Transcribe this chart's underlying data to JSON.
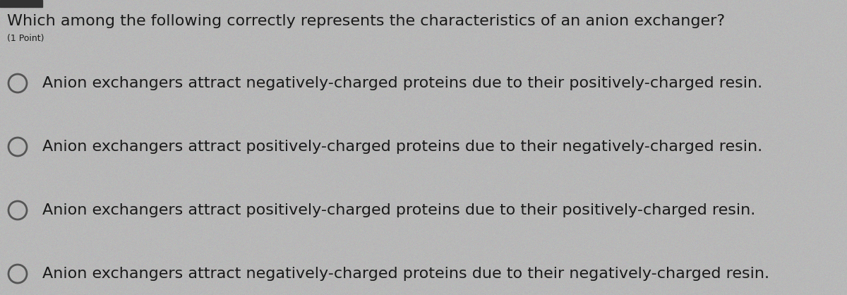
{
  "title": "Which among the following correctly represents the characteristics of an anion exchanger?",
  "subtitle": "(1 Point)",
  "options": [
    "Anion exchangers attract negatively-charged proteins due to their positively-charged resin.",
    "Anion exchangers attract positively-charged proteins due to their negatively-charged resin.",
    "Anion exchangers attract positively-charged proteins due to their positively-charged resin.",
    "Anion exchangers attract negatively-charged proteins due to their negatively-charged resin."
  ],
  "background_color": "#b8b8b8",
  "text_color": "#1a1a1a",
  "title_fontsize": 16,
  "subtitle_fontsize": 9,
  "option_fontsize": 16,
  "circle_color": "#555555",
  "fig_width": 12.0,
  "fig_height": 4.18
}
